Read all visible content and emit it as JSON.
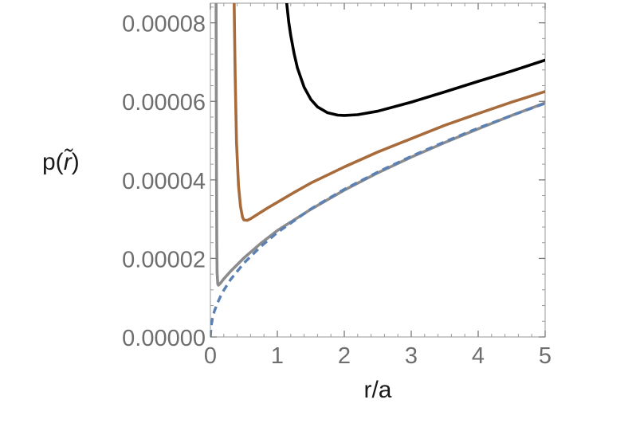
{
  "chart_data": {
    "type": "line",
    "title": "",
    "xlabel": "r/a",
    "ylabel_text": "p(",
    "ylabel_var": "r̃",
    "ylabel_close": ")",
    "xlim": [
      0,
      5
    ],
    "ylim": [
      0,
      8.5e-05
    ],
    "x_ticks": [
      0,
      1,
      2,
      3,
      4,
      5
    ],
    "x_tick_labels": [
      "0",
      "1",
      "2",
      "3",
      "4",
      "5"
    ],
    "y_ticks": [
      0,
      2e-05,
      4e-05,
      6e-05,
      8e-05
    ],
    "y_tick_labels": [
      "0.00000",
      "0.00002",
      "0.00004",
      "0.00006",
      "0.00008"
    ],
    "grid": false,
    "frame": true,
    "series": [
      {
        "color": "#000000",
        "dashed": false,
        "x": [
          1.14,
          1.17,
          1.2,
          1.25,
          1.3,
          1.4,
          1.5,
          1.6,
          1.75,
          1.9,
          2.0,
          2.2,
          2.5,
          3.0,
          3.5,
          4.0,
          4.5,
          5.0
        ],
        "y": [
          8.5e-05,
          8.02e-05,
          7.68e-05,
          7.22e-05,
          6.85e-05,
          6.36e-05,
          6.05e-05,
          5.86e-05,
          5.71e-05,
          5.65e-05,
          5.64e-05,
          5.66e-05,
          5.75e-05,
          5.98e-05,
          6.24e-05,
          6.51e-05,
          6.77e-05,
          7.05e-05
        ]
      },
      {
        "color": "#a86b3c",
        "dashed": false,
        "x": [
          0.355,
          0.37,
          0.39,
          0.42,
          0.45,
          0.48,
          0.5,
          0.55,
          0.6,
          0.7,
          0.85,
          1.0,
          1.25,
          1.5,
          2.0,
          2.5,
          3.0,
          3.5,
          4.0,
          4.5,
          5.0
        ],
        "y": [
          8.5e-05,
          6.65e-05,
          4.95e-05,
          3.85e-05,
          3.32e-05,
          3.05e-05,
          2.98e-05,
          2.97e-05,
          3.01e-05,
          3.12e-05,
          3.28e-05,
          3.43e-05,
          3.68e-05,
          3.92e-05,
          4.33e-05,
          4.71e-05,
          5.05e-05,
          5.39e-05,
          5.69e-05,
          5.98e-05,
          6.25e-05
        ]
      },
      {
        "color": "#8c8c8c",
        "dashed": false,
        "x": [
          0.085,
          0.09,
          0.095,
          0.1,
          0.11,
          0.12,
          0.15,
          0.2,
          0.3,
          0.5,
          0.75,
          1.0,
          1.5,
          2.0,
          2.5,
          3.0,
          3.5,
          4.0,
          4.5,
          5.0
        ],
        "y": [
          8.5e-05,
          4.5e-05,
          2.5e-05,
          1.65e-05,
          1.35e-05,
          1.32e-05,
          1.37e-05,
          1.48e-05,
          1.67e-05,
          2.01e-05,
          2.38e-05,
          2.71e-05,
          3.25e-05,
          3.74e-05,
          4.18e-05,
          4.58e-05,
          4.95e-05,
          5.3e-05,
          5.64e-05,
          5.96e-05
        ]
      },
      {
        "color": "#5b80b4",
        "dashed": true,
        "x": [
          0.0,
          0.01,
          0.03,
          0.06,
          0.1,
          0.15,
          0.2,
          0.3,
          0.5,
          0.75,
          1.0,
          1.5,
          2.0,
          2.5,
          3.0,
          3.5,
          4.0,
          4.5,
          5.0
        ],
        "y": [
          0.0,
          2.6e-06,
          4.7e-06,
          6.6e-06,
          8.4e-06,
          1.03e-05,
          1.19e-05,
          1.46e-05,
          1.88e-05,
          2.3e-05,
          2.66e-05,
          3.26e-05,
          3.76e-05,
          4.2e-05,
          4.6e-05,
          4.97e-05,
          5.32e-05,
          5.64e-05,
          5.95e-05
        ]
      }
    ]
  }
}
